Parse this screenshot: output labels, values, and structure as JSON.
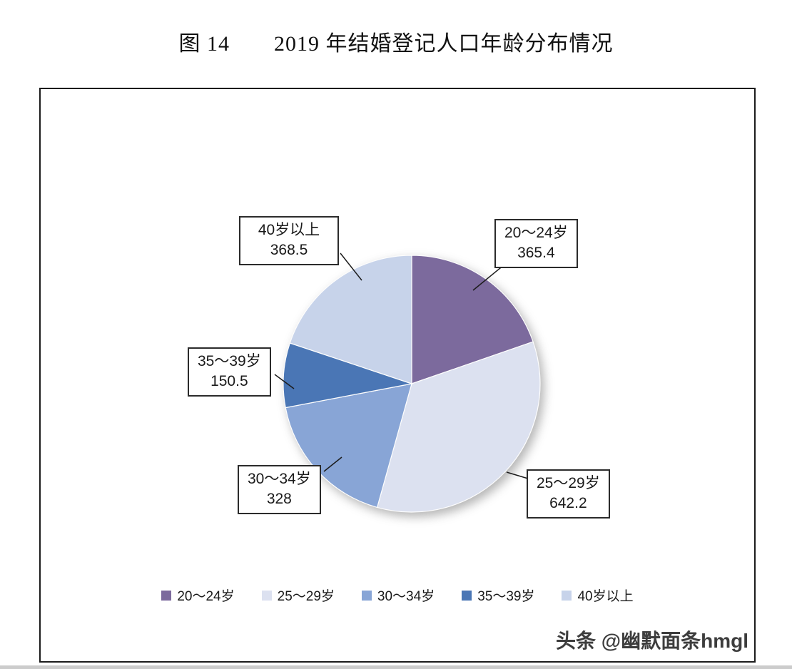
{
  "page": {
    "title": "图 14　　2019 年结婚登记人口年龄分布情况",
    "watermark": "头条 @幽默面条hmgl"
  },
  "chart_data": {
    "type": "pie",
    "title": "图 14 2019 年结婚登记人口年龄分布情况",
    "categories": [
      "20～24岁",
      "25～29岁",
      "30～34岁",
      "35～39岁",
      "40岁以上"
    ],
    "values": [
      365.4,
      642.2,
      328,
      150.5,
      368.5
    ],
    "colors": [
      "#7c6a9d",
      "#dce1f0",
      "#88a5d6",
      "#4a76b5",
      "#c7d3ea"
    ],
    "start_angle_deg": 0,
    "direction": "clockwise",
    "legend_position": "bottom",
    "callouts": [
      {
        "label": "20～24岁",
        "value": "365.4"
      },
      {
        "label": "25～29岁",
        "value": "642.2"
      },
      {
        "label": "30～34岁",
        "value": "328"
      },
      {
        "label": "35～39岁",
        "value": "150.5"
      },
      {
        "label": "40岁以上",
        "value": "368.5"
      }
    ]
  },
  "legend": {
    "items": [
      {
        "label": "20～24岁",
        "color": "#7c6a9d"
      },
      {
        "label": "25～29岁",
        "color": "#dce1f0"
      },
      {
        "label": "30～34岁",
        "color": "#88a5d6"
      },
      {
        "label": "35～39岁",
        "color": "#4a76b5"
      },
      {
        "label": "40岁以上",
        "color": "#c7d3ea"
      }
    ]
  }
}
